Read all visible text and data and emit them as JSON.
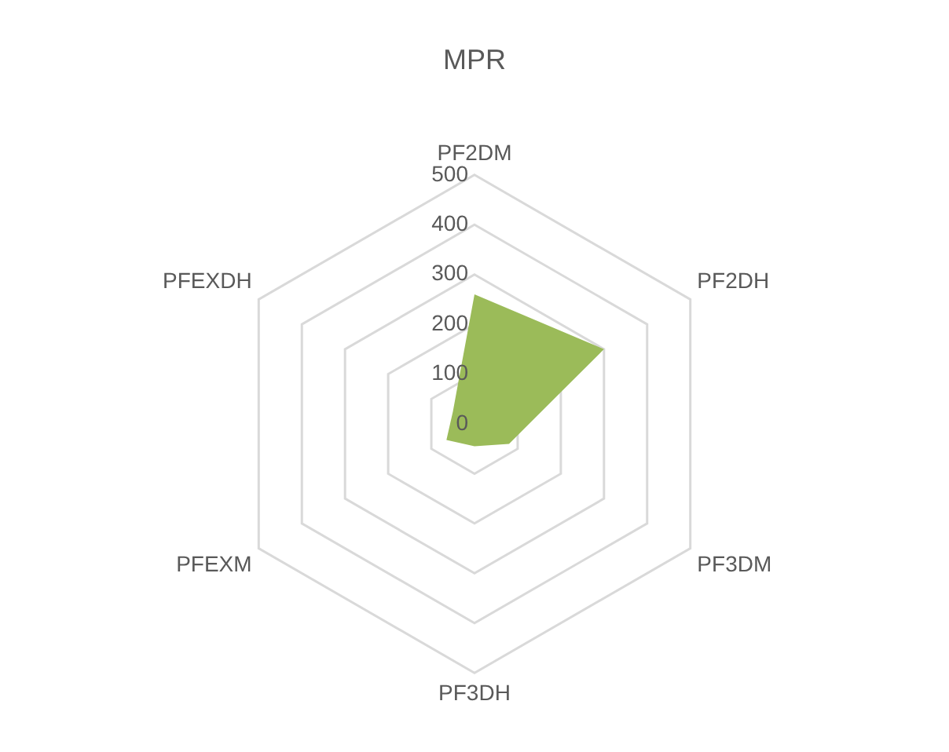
{
  "chart_data": {
    "type": "radar",
    "title": "MPR",
    "categories": [
      "PF2DM",
      "PF2DH",
      "PF3DM",
      "PF3DH",
      "PFEXM",
      "PFEXDH"
    ],
    "series": [
      {
        "color": "#9bbb59",
        "values": [
          260,
          300,
          80,
          45,
          65,
          50
        ]
      }
    ],
    "ylim": [
      0,
      500
    ],
    "yticks": [
      0,
      100,
      200,
      300,
      400,
      500
    ],
    "grid": true,
    "legend": false,
    "marker": "none"
  }
}
